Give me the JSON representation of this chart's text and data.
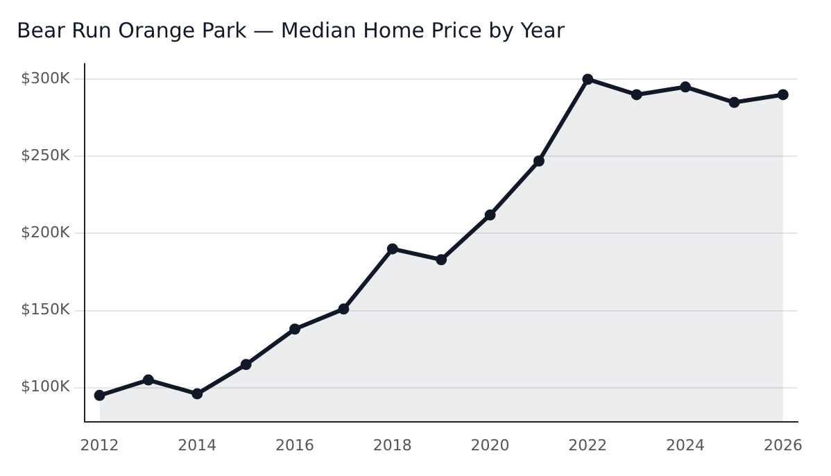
{
  "chart_data": {
    "type": "area",
    "title": "Bear Run Orange Park — Median Home Price by Year",
    "x": [
      2012,
      2013,
      2014,
      2015,
      2016,
      2017,
      2018,
      2019,
      2020,
      2021,
      2022,
      2023,
      2024,
      2025,
      2026
    ],
    "series": [
      {
        "color": "#111827",
        "values": [
          95000,
          105000,
          96000,
          115000,
          138000,
          151000,
          190000,
          183000,
          212000,
          247000,
          300000,
          290000,
          295000,
          285000,
          290000
        ]
      }
    ],
    "xlim": [
      2011.7,
      2026.3
    ],
    "xticks": [
      2012,
      2014,
      2016,
      2018,
      2020,
      2022,
      2024,
      2026
    ],
    "ylim": [
      78000,
      310000
    ],
    "yticks": [
      {
        "value": 100000,
        "label": "$100K"
      },
      {
        "value": 150000,
        "label": "$150K"
      },
      {
        "value": 200000,
        "label": "$200K"
      },
      {
        "value": 250000,
        "label": "$250K"
      },
      {
        "value": 300000,
        "label": "$300K"
      }
    ],
    "grid": "y",
    "marker": "circle",
    "legend": false
  }
}
